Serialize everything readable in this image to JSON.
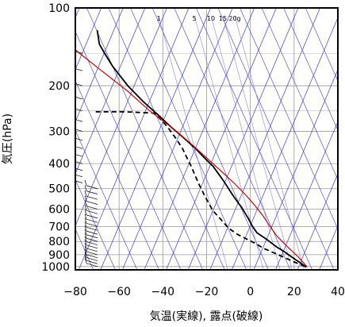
{
  "chart_data": {
    "type": "line",
    "xlabel": "気温(実線), 露点(破線)",
    "ylabel": "気圧(hPa)",
    "xlim": [
      -80,
      40
    ],
    "ylim": [
      1030,
      100
    ],
    "y_log_scale": true,
    "x_ticks": [
      "−80",
      "−60",
      "−40",
      "−20",
      "0",
      "20",
      "40"
    ],
    "y_ticks": [
      "100",
      "200",
      "300",
      "400",
      "500",
      "600",
      "700",
      "800",
      "900",
      "1000"
    ],
    "mixing_ratio_labels": [
      "1",
      "5",
      "10",
      "15",
      "20g"
    ],
    "grid": true,
    "series": [
      {
        "role": "temperature",
        "style": "solid",
        "color": "#000000",
        "points": [
          [
            25.5,
            1005
          ],
          [
            23,
            970
          ],
          [
            19,
            920
          ],
          [
            15,
            870
          ],
          [
            12,
            840
          ],
          [
            7,
            780
          ],
          [
            3,
            740
          ],
          [
            1,
            700
          ],
          [
            -1,
            650
          ],
          [
            -4,
            590
          ],
          [
            -6,
            560
          ],
          [
            -8,
            530
          ],
          [
            -12,
            470
          ],
          [
            -14,
            445
          ],
          [
            -17,
            410
          ],
          [
            -21,
            380
          ],
          [
            -25,
            350
          ],
          [
            -31,
            315
          ],
          [
            -36,
            290
          ],
          [
            -42,
            260
          ],
          [
            -49,
            230
          ],
          [
            -56,
            200
          ],
          [
            -63,
            168
          ],
          [
            -67,
            148
          ],
          [
            -69,
            138
          ],
          [
            -69.5,
            130
          ],
          [
            -70,
            122
          ]
        ]
      },
      {
        "role": "dewpoint",
        "style": "dashed",
        "color": "#000000",
        "points": [
          [
            25,
            1000
          ],
          [
            20,
            960
          ],
          [
            12,
            895
          ],
          [
            6,
            850
          ],
          [
            3,
            820
          ],
          [
            -2,
            780
          ],
          [
            -6,
            750
          ],
          [
            -10,
            710
          ],
          [
            -14,
            650
          ],
          [
            -17,
            610
          ],
          [
            -19,
            570
          ],
          [
            -21,
            530
          ],
          [
            -23,
            490
          ],
          [
            -25,
            450
          ],
          [
            -27,
            410
          ],
          [
            -29,
            380
          ],
          [
            -31,
            350
          ],
          [
            -34,
            320
          ],
          [
            -37,
            295
          ],
          [
            -40,
            275
          ],
          [
            -44,
            255
          ],
          [
            -58,
            252
          ],
          [
            -70,
            252
          ],
          [
            -72,
            252
          ]
        ]
      },
      {
        "role": "red-curve",
        "style": "solid",
        "color": "#cc0000",
        "points": [
          [
            26,
            1005
          ],
          [
            22,
            920
          ],
          [
            17,
            840
          ],
          [
            12,
            760
          ],
          [
            9,
            700
          ],
          [
            6,
            640
          ],
          [
            2,
            580
          ],
          [
            -2,
            530
          ],
          [
            -7,
            480
          ],
          [
            -13,
            430
          ],
          [
            -20,
            380
          ],
          [
            -28,
            330
          ],
          [
            -36,
            290
          ],
          [
            -46,
            250
          ],
          [
            -56,
            210
          ],
          [
            -68,
            175
          ],
          [
            -78,
            150
          ],
          [
            -80,
            145
          ]
        ]
      }
    ],
    "wind_barbs_column": "left edge, pressures 1000–140 hPa"
  }
}
